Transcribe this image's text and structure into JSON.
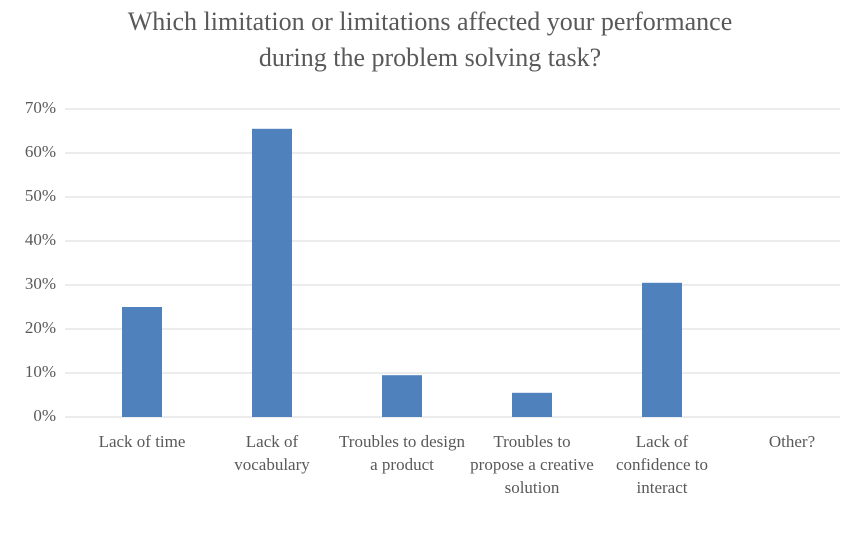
{
  "chart_data": {
    "type": "bar",
    "title": "Which limitation or limitations affected your performance during the problem solving task?",
    "categories": [
      "Lack of time",
      "Lack of vocabulary",
      "Troubles to design a product",
      "Troubles to propose a creative solution",
      "Lack of confidence to interact",
      "Other?"
    ],
    "values": [
      25,
      65.5,
      9.5,
      5.5,
      30.5,
      0
    ],
    "color": "#4f81bd",
    "ylim": [
      0,
      70
    ],
    "yticks": [
      {
        "value": 0,
        "label": "0%"
      },
      {
        "value": 10,
        "label": "10%"
      },
      {
        "value": 20,
        "label": "20%"
      },
      {
        "value": 30,
        "label": "30%"
      },
      {
        "value": 40,
        "label": "40%"
      },
      {
        "value": 50,
        "label": "50%"
      },
      {
        "value": 60,
        "label": "60%"
      },
      {
        "value": 70,
        "label": "70%"
      }
    ],
    "grid": true
  }
}
